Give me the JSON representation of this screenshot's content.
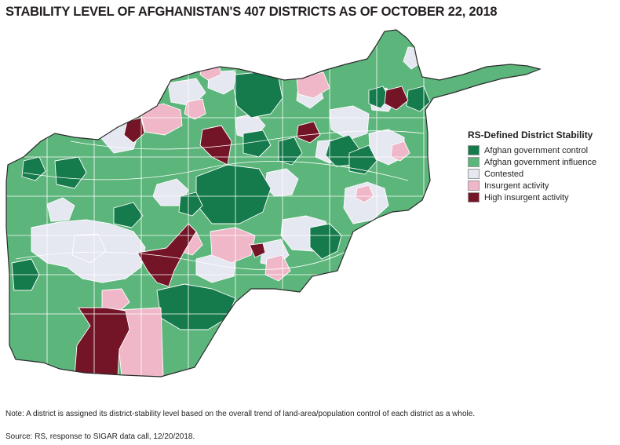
{
  "title": "STABILITY LEVEL OF AFGHANISTAN'S 407 DISTRICTS AS OF OCTOBER 22, 2018",
  "legend": {
    "title": "RS-Defined District Stability",
    "items": [
      {
        "label": "Afghan government control",
        "color": "#157a4c"
      },
      {
        "label": "Afghan government influence",
        "color": "#5cb57a"
      },
      {
        "label": "Contested",
        "color": "#e5e7f1"
      },
      {
        "label": "Insurgent activity",
        "color": "#efb7c8"
      },
      {
        "label": "High insurgent activity",
        "color": "#741427"
      }
    ]
  },
  "note": "Note: A district is assigned its district-stability level based on the overall trend of land-area/population control of each district as a whole.",
  "source": "Source: RS, response to SIGAR data call, 12/20/2018.",
  "map": {
    "border_color": "#2a2a2a",
    "district_line_color": "#ffffff"
  }
}
